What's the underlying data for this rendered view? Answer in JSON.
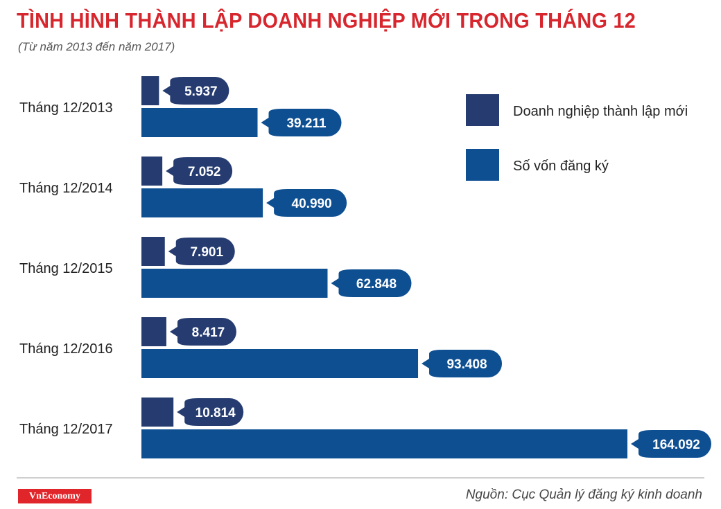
{
  "chart_data": {
    "type": "bar",
    "orientation": "horizontal",
    "title": "TÌNH HÌNH THÀNH LẬP DOANH NGHIỆP MỚI TRONG THÁNG 12",
    "subtitle": "(Từ năm 2013 đến năm 2017)",
    "categories": [
      "Tháng 12/2013",
      "Tháng 12/2014",
      "Tháng 12/2015",
      "Tháng 12/2016",
      "Tháng 12/2017"
    ],
    "series": [
      {
        "name": "Doanh nghiệp thành lập mới",
        "color": "#263c70",
        "values": [
          5937,
          7052,
          7901,
          8417,
          10814
        ],
        "labels": [
          "5.937",
          "7.052",
          "7.901",
          "8.417",
          "10.814"
        ]
      },
      {
        "name": "Số vốn đăng ký",
        "color": "#0e4f92",
        "values": [
          39211,
          40990,
          62848,
          93408,
          164092
        ],
        "labels": [
          "39.211",
          "40.990",
          "62.848",
          "93.408",
          "164.092"
        ]
      }
    ],
    "xlim": [
      0,
      164092
    ],
    "grid": false,
    "legend_position": "top-right"
  },
  "footer": {
    "brand": "VnEconomy",
    "source": "Nguồn: Cục Quản lý đăng ký kinh doanh"
  }
}
